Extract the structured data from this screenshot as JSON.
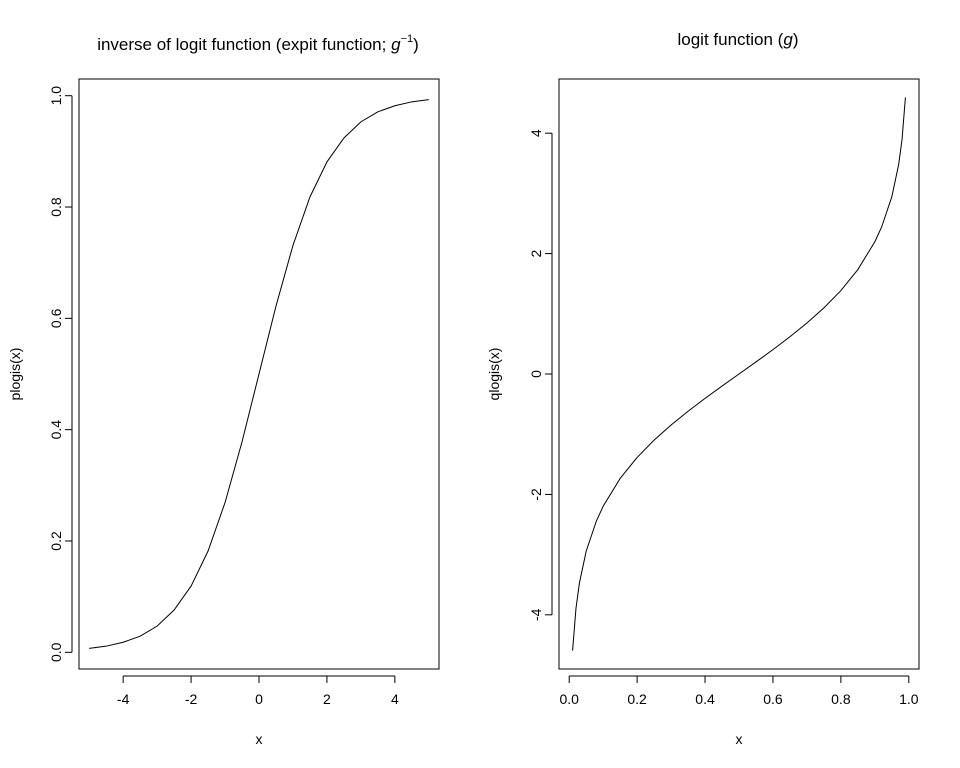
{
  "chart_data": [
    {
      "type": "line",
      "title": "inverse of logit function (expit function; g⁻¹)",
      "title_parts": {
        "text": "inverse of logit function (expit function; ",
        "symbol": "g",
        "superscript": "−1",
        "close": ")"
      },
      "xlabel": "x",
      "ylabel": "plogis(x)",
      "xlim": [
        -5.3,
        5.3
      ],
      "ylim": [
        -0.03,
        1.03
      ],
      "xticks": [
        -4,
        -2,
        0,
        2,
        4
      ],
      "xtick_labels": [
        "-4",
        "-2",
        "0",
        "2",
        "4"
      ],
      "yticks": [
        0.0,
        0.2,
        0.4,
        0.6,
        0.8,
        1.0
      ],
      "ytick_labels": [
        "0.0",
        "0.2",
        "0.4",
        "0.6",
        "0.8",
        "1.0"
      ],
      "grid": false,
      "series": [
        {
          "x": [
            -5.0,
            -4.5,
            -4.0,
            -3.5,
            -3.0,
            -2.5,
            -2.0,
            -1.5,
            -1.0,
            -0.5,
            0.0,
            0.5,
            1.0,
            1.5,
            2.0,
            2.5,
            3.0,
            3.5,
            4.0,
            4.5,
            5.0
          ],
          "y": [
            0.007,
            0.011,
            0.018,
            0.029,
            0.047,
            0.076,
            0.119,
            0.182,
            0.269,
            0.378,
            0.5,
            0.622,
            0.731,
            0.818,
            0.881,
            0.924,
            0.953,
            0.971,
            0.982,
            0.989,
            0.993
          ]
        }
      ]
    },
    {
      "type": "line",
      "title": "logit function (g)",
      "title_parts": {
        "text": "logit function (",
        "symbol": "g",
        "close": ")"
      },
      "xlabel": "x",
      "ylabel": "qlogis(x)",
      "xlim": [
        -0.03,
        1.03
      ],
      "ylim": [
        -4.9,
        4.9
      ],
      "xticks": [
        0.0,
        0.2,
        0.4,
        0.6,
        0.8,
        1.0
      ],
      "xtick_labels": [
        "0.0",
        "0.2",
        "0.4",
        "0.6",
        "0.8",
        "1.0"
      ],
      "yticks": [
        -4,
        -2,
        0,
        2,
        4
      ],
      "ytick_labels": [
        "-4",
        "-2",
        "0",
        "2",
        "4"
      ],
      "grid": false,
      "series": [
        {
          "x": [
            0.01,
            0.02,
            0.03,
            0.05,
            0.08,
            0.1,
            0.15,
            0.2,
            0.25,
            0.3,
            0.35,
            0.4,
            0.45,
            0.5,
            0.55,
            0.6,
            0.65,
            0.7,
            0.75,
            0.8,
            0.85,
            0.9,
            0.92,
            0.95,
            0.97,
            0.98,
            0.99
          ],
          "y": [
            -4.595,
            -3.892,
            -3.476,
            -2.944,
            -2.442,
            -2.197,
            -1.735,
            -1.386,
            -1.099,
            -0.847,
            -0.619,
            -0.405,
            -0.2,
            0.0,
            0.2,
            0.405,
            0.619,
            0.847,
            1.099,
            1.386,
            1.735,
            2.197,
            2.442,
            2.944,
            3.476,
            3.892,
            4.595
          ]
        }
      ]
    }
  ]
}
